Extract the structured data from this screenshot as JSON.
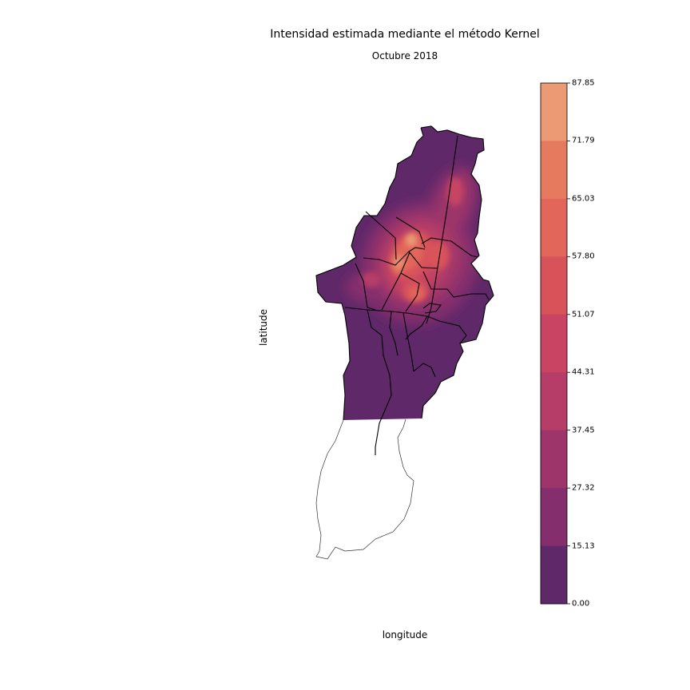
{
  "title": "Intensidad estimada mediante el método Kernel",
  "subtitle": "Octubre 2018",
  "xlabel": "longitude",
  "ylabel": "latitude",
  "colorbar": {
    "ticks": [
      "87.85",
      "71.79",
      "65.03",
      "57.80",
      "51.07",
      "44.31",
      "37.45",
      "27.32",
      "15.13",
      "0.00"
    ],
    "colors": [
      "#eb9a73",
      "#e67a5f",
      "#e2665a",
      "#d8525a",
      "#c84462",
      "#b63d67",
      "#9d356b",
      "#842e6d",
      "#5f2869"
    ]
  },
  "colors": {
    "base": "#5f2869",
    "boundary": "#000000",
    "outline": "#333333"
  }
}
